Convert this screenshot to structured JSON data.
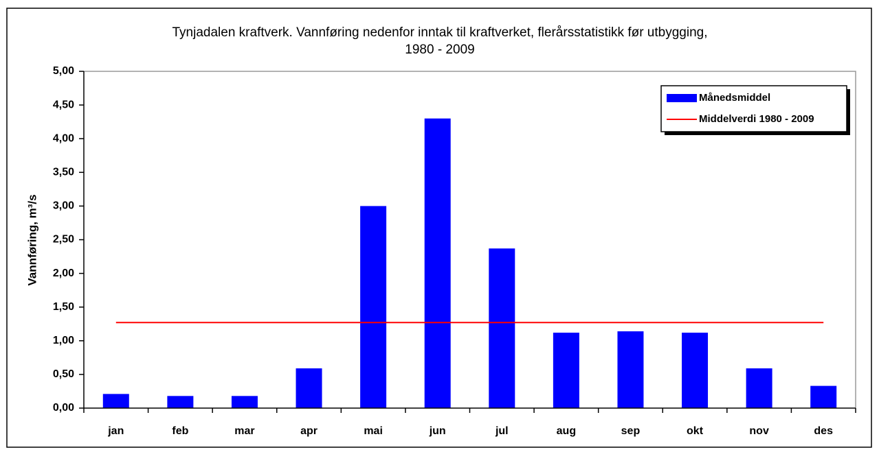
{
  "chart_data": {
    "type": "bar",
    "title": [
      "Tynjadalen kraftverk. Vannføring nedenfor inntak til kraftverket, flerårsstatistikk før utbygging,",
      "1980 - 2009"
    ],
    "y_label": "Vannføring, m³/s",
    "categories": [
      "jan",
      "feb",
      "mar",
      "apr",
      "mai",
      "jun",
      "jul",
      "aug",
      "sep",
      "okt",
      "nov",
      "des"
    ],
    "series": [
      {
        "name": "Månedsmiddel",
        "type": "bar",
        "color": "#0000ff",
        "values": [
          0.21,
          0.18,
          0.18,
          0.59,
          3.0,
          4.3,
          2.37,
          1.12,
          1.14,
          1.12,
          0.59,
          0.33
        ]
      },
      {
        "name": "Middelverdi 1980 - 2009",
        "type": "line",
        "color": "#ff0000",
        "values": [
          1.27,
          1.27,
          1.27,
          1.27,
          1.27,
          1.27,
          1.27,
          1.27,
          1.27,
          1.27,
          1.27,
          1.27
        ]
      }
    ],
    "ylim": [
      0,
      5
    ],
    "yticks": [
      {
        "value": 0,
        "label": "0,00"
      },
      {
        "value": 0.5,
        "label": "0,50"
      },
      {
        "value": 1,
        "label": "1,00"
      },
      {
        "value": 1.5,
        "label": "1,50"
      },
      {
        "value": 2,
        "label": "2,00"
      },
      {
        "value": 2.5,
        "label": "2,50"
      },
      {
        "value": 3,
        "label": "3,00"
      },
      {
        "value": 3.5,
        "label": "3,50"
      },
      {
        "value": 4,
        "label": "4,00"
      },
      {
        "value": 4.5,
        "label": "4,50"
      },
      {
        "value": 5,
        "label": "5,00"
      }
    ],
    "legend": "upper right"
  }
}
